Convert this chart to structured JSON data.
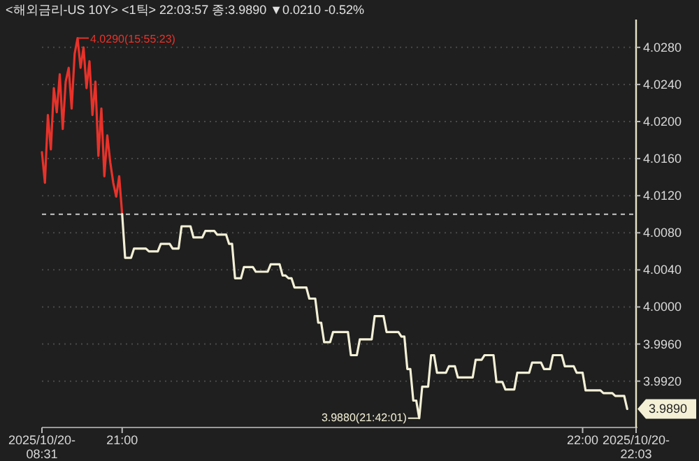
{
  "chart_data": {
    "type": "line",
    "title": "<해외금리-US 10Y> <1틱> 22:03:57 종:3.9890 ▼0.0210 -0.52%",
    "categories": [
      "2025/10/20-08:31",
      null,
      null,
      null,
      null,
      null,
      null,
      null,
      null,
      null,
      null,
      null,
      null,
      null,
      null,
      null,
      null,
      null,
      null,
      null,
      null,
      null,
      null,
      null,
      null,
      null,
      null,
      "21:00",
      null,
      null,
      null,
      null,
      null,
      null,
      null,
      null,
      null,
      null,
      null,
      null,
      null,
      null,
      null,
      null,
      null,
      null,
      null,
      null,
      null,
      null,
      null,
      null,
      null,
      null,
      null,
      null,
      null,
      null,
      null,
      null,
      null,
      null,
      null,
      null,
      null,
      null,
      null,
      null,
      null,
      null,
      null,
      null,
      null,
      null,
      null,
      null,
      null,
      null,
      null,
      null,
      null,
      null,
      null,
      null,
      null,
      null,
      null,
      null,
      null,
      null,
      null,
      null,
      null,
      null,
      null,
      null,
      null,
      null,
      null,
      null,
      null,
      null,
      null,
      null,
      null,
      null,
      null,
      null,
      null,
      null,
      null,
      null,
      null,
      null,
      null,
      null,
      null,
      null,
      null,
      null,
      null,
      null,
      null,
      null,
      null,
      null,
      null,
      null,
      null,
      null,
      null,
      null,
      null,
      null,
      null,
      null,
      null,
      null,
      null,
      null,
      null,
      null,
      null,
      null,
      null,
      null,
      null,
      null,
      null,
      null,
      null,
      null,
      null,
      null,
      null,
      null,
      null,
      null,
      null,
      null,
      null,
      null,
      null,
      null,
      null,
      null,
      null,
      null,
      null,
      null,
      null,
      null,
      null,
      null,
      null,
      null,
      null,
      null,
      null,
      null,
      null,
      null,
      "22:00",
      null,
      null,
      null,
      null,
      null,
      null,
      null,
      null,
      null,
      null,
      null,
      null,
      null,
      null,
      null,
      null,
      null,
      "2025/10/20-22:03"
    ],
    "series": [
      {
        "color": "#e8322a",
        "values": [
          4.0167,
          4.0134,
          4.0207,
          4.017,
          4.0236,
          4.021,
          4.0251,
          4.0192,
          4.0243,
          4.0258,
          4.0214,
          4.0273,
          4.029,
          4.0258,
          4.028,
          4.0236,
          4.0265,
          4.0207,
          4.0243,
          4.0163,
          4.0214,
          4.0141,
          4.0185,
          4.0156,
          4.0134,
          4.0119,
          4.0141,
          4.01,
          null,
          null,
          null,
          null,
          null,
          null,
          null,
          null,
          null,
          null,
          null,
          null,
          null,
          null,
          null,
          null,
          null,
          null,
          null,
          null,
          null,
          null,
          null,
          null,
          null,
          null,
          null,
          null,
          null,
          null,
          null,
          null,
          null,
          null,
          null,
          null,
          null,
          null,
          null,
          null,
          null,
          null,
          null,
          null,
          null,
          null,
          null,
          null,
          null,
          null,
          null,
          null,
          null,
          null,
          null,
          null,
          null,
          null,
          null,
          null,
          null,
          null,
          null,
          null,
          null,
          null,
          null,
          null,
          null,
          null,
          null,
          null,
          null,
          null,
          null,
          null,
          null,
          null,
          null,
          null,
          null,
          null,
          null,
          null,
          null,
          null,
          null,
          null,
          null,
          null,
          null,
          null,
          null,
          null,
          null,
          null,
          null,
          null,
          null,
          null,
          null,
          null,
          null,
          null,
          null,
          null,
          null,
          null,
          null,
          null,
          null,
          null,
          null,
          null,
          null,
          null,
          null,
          null,
          null,
          null,
          null,
          null,
          null,
          null,
          null,
          null,
          null,
          null,
          null,
          null,
          null,
          null,
          null,
          null,
          null,
          null,
          null,
          null,
          null,
          null,
          null,
          null,
          null,
          null,
          null,
          null,
          null,
          null,
          null,
          null,
          null,
          null,
          null,
          null,
          null,
          null,
          null,
          null,
          null,
          null,
          null,
          null,
          null,
          null,
          null,
          null,
          null,
          null,
          null,
          null,
          null,
          null,
          null
        ]
      },
      {
        "color": "#f3f0d6",
        "values": [
          null,
          null,
          null,
          null,
          null,
          null,
          null,
          null,
          null,
          null,
          null,
          null,
          null,
          null,
          null,
          null,
          null,
          null,
          null,
          null,
          null,
          null,
          null,
          null,
          null,
          null,
          null,
          4.01,
          4.0053,
          4.0053,
          4.0053,
          4.0063,
          4.0063,
          4.0063,
          4.0063,
          4.0063,
          4.006,
          4.006,
          4.006,
          4.006,
          4.0068,
          4.0068,
          4.0068,
          4.0068,
          4.0063,
          4.0063,
          4.0063,
          4.0087,
          4.0087,
          4.0087,
          4.0087,
          4.0075,
          4.0075,
          4.0075,
          4.0075,
          4.0082,
          4.0082,
          4.0082,
          4.0082,
          4.0078,
          4.0078,
          4.0078,
          4.0078,
          4.0068,
          4.0068,
          4.0031,
          4.0031,
          4.0031,
          4.0043,
          4.0043,
          4.0043,
          4.0043,
          4.0038,
          4.0038,
          4.0038,
          4.0038,
          4.0038,
          4.0046,
          4.0046,
          4.0046,
          4.0046,
          4.0034,
          4.0034,
          4.0031,
          4.0031,
          4.0021,
          4.0021,
          4.0021,
          4.0021,
          4.0021,
          4.0009,
          4.0009,
          4.0009,
          3.9983,
          3.9983,
          3.9962,
          3.9962,
          3.9962,
          3.9973,
          3.9973,
          3.9973,
          3.9973,
          3.9973,
          3.9973,
          3.9948,
          3.9948,
          3.9948,
          3.9965,
          3.9965,
          3.9965,
          3.9965,
          3.9965,
          3.999,
          3.999,
          3.999,
          3.999,
          3.9973,
          3.9973,
          3.9973,
          3.9973,
          3.9973,
          3.9968,
          3.9968,
          3.9933,
          3.9933,
          3.9899,
          3.9899,
          3.988,
          3.9914,
          3.9914,
          3.9914,
          3.9948,
          3.9948,
          3.9929,
          3.9929,
          3.9929,
          3.9929,
          3.9936,
          3.9936,
          3.9936,
          3.9924,
          3.9924,
          3.9924,
          3.9924,
          3.9924,
          3.9924,
          3.9943,
          3.9943,
          3.9943,
          3.9948,
          3.9948,
          3.9948,
          3.9948,
          3.9919,
          3.9919,
          3.9919,
          3.9911,
          3.9911,
          3.9911,
          3.9911,
          3.9929,
          3.9929,
          3.9929,
          3.9929,
          3.9929,
          3.994,
          3.994,
          3.994,
          3.994,
          3.9933,
          3.9933,
          3.9933,
          3.9948,
          3.9948,
          3.9948,
          3.9948,
          3.9936,
          3.9936,
          3.9936,
          3.9936,
          3.9929,
          3.9929,
          3.9929,
          3.991,
          3.991,
          3.991,
          3.991,
          3.991,
          3.991,
          3.9907,
          3.9907,
          3.9907,
          3.9907,
          3.9904,
          3.9904,
          3.9904,
          3.9904,
          3.989,
          null,
          null,
          null
        ]
      }
    ],
    "ylim": [
      3.987,
      4.031
    ],
    "yticks": [
      {
        "value": 3.992,
        "label": "3.9920"
      },
      {
        "value": 3.996,
        "label": "3.9960"
      },
      {
        "value": 4.0,
        "label": "4.0000"
      },
      {
        "value": 4.004,
        "label": "4.0040"
      },
      {
        "value": 4.008,
        "label": "4.0080"
      },
      {
        "value": 4.012,
        "label": "4.0120"
      },
      {
        "value": 4.016,
        "label": "4.0160"
      },
      {
        "value": 4.02,
        "label": "4.0200"
      },
      {
        "value": 4.024,
        "label": "4.0240"
      },
      {
        "value": 4.028,
        "label": "4.0280"
      }
    ],
    "grid": "y",
    "ref_lines": [
      {
        "axis": "y",
        "value": 4.01,
        "color": "#c8c8c8",
        "line_style": "dashed"
      }
    ],
    "annotations": [
      "4.0290(15:55:23)",
      "3.9880(21:42:01)",
      "3.9890"
    ]
  }
}
